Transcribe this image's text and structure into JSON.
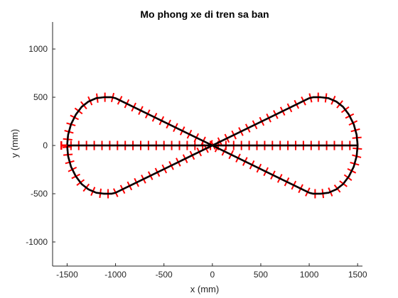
{
  "chart_data": {
    "type": "line",
    "title": "Mo phong xe di tren sa ban",
    "xlabel": "x (mm)",
    "ylabel": "y (mm)",
    "xlim": [
      -1650,
      1550
    ],
    "ylim": [
      -1250,
      1280
    ],
    "xticks": [
      -1500,
      -1000,
      -500,
      0,
      500,
      1000,
      1500
    ],
    "yticks": [
      -1000,
      -500,
      0,
      500,
      1000
    ],
    "xtick_labels": [
      "-1500",
      "-1000",
      "-500",
      "0",
      "500",
      "1000",
      "1500"
    ],
    "ytick_labels": [
      "-1000",
      "-500",
      "0",
      "500",
      "1000"
    ],
    "grid": false,
    "series": [
      {
        "role": "track",
        "color": "#000000",
        "x": [
          -1500,
          1500,
          1490,
          1460,
          1410,
          1350,
          1280,
          1200,
          1120,
          1040,
          1000,
          0,
          -1000,
          -1040,
          -1120,
          -1200,
          -1280,
          -1350,
          -1410,
          -1460,
          -1490,
          -1500,
          -1490,
          -1460,
          -1410,
          -1350,
          -1280,
          -1200,
          -1120,
          -1040,
          -1000,
          0,
          1000,
          1040,
          1120,
          1200,
          1280,
          1350,
          1410,
          1460,
          1490,
          1500
        ],
        "y": [
          0,
          0,
          110,
          220,
          320,
          400,
          455,
          490,
          500,
          500,
          490,
          0,
          -490,
          -500,
          -500,
          -490,
          -455,
          -400,
          -320,
          -220,
          -110,
          0,
          110,
          220,
          320,
          400,
          455,
          490,
          500,
          500,
          490,
          0,
          -490,
          -500,
          -500,
          -490,
          -455,
          -400,
          -320,
          -220,
          -110,
          0
        ]
      },
      {
        "role": "vehicle-path",
        "color": "#ff0000",
        "x": [
          -1500,
          1500,
          1490,
          1460,
          1410,
          1350,
          1280,
          1200,
          1120,
          1040,
          1000,
          0,
          -1000,
          -1040,
          -1120,
          -1200,
          -1280,
          -1350,
          -1410,
          -1460,
          -1490,
          -1500,
          -1490,
          -1460,
          -1410,
          -1350,
          -1280,
          -1200,
          -1120,
          -1040,
          -1000,
          0,
          1000,
          1040,
          1120,
          1200,
          1280,
          1350,
          1410,
          1460,
          1490,
          1500
        ],
        "y": [
          0,
          0,
          110,
          220,
          320,
          400,
          455,
          490,
          500,
          500,
          490,
          0,
          -490,
          -500,
          -500,
          -490,
          -455,
          -400,
          -320,
          -220,
          -110,
          0,
          110,
          220,
          320,
          400,
          455,
          490,
          500,
          500,
          490,
          0,
          -490,
          -500,
          -500,
          -490,
          -455,
          -400,
          -320,
          -220,
          -110,
          0
        ],
        "tick_spacing": 80,
        "marker_half_length": 48
      }
    ],
    "start_marker": {
      "x": -1560,
      "y": 0,
      "color": "#ff0000"
    }
  }
}
